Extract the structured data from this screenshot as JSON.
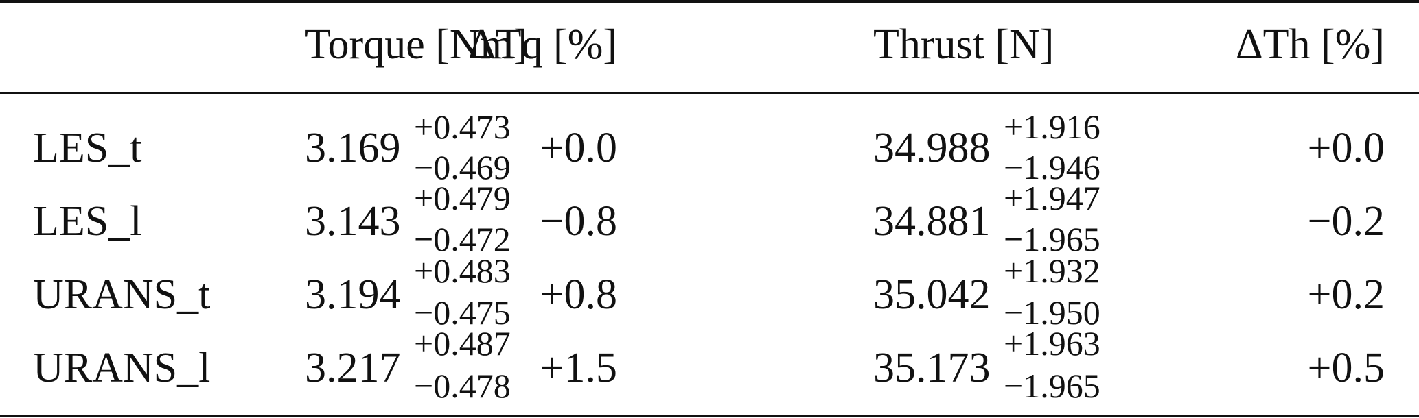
{
  "table": {
    "headers": {
      "label": "",
      "torque": "Torque [Nm]",
      "dtq": "ΔTq [%]",
      "thrust": "Thrust [N]",
      "dth": "ΔTh [%]"
    },
    "rows": [
      {
        "label": "LES_t",
        "torque": "3.169",
        "torque_plus": "+0.473",
        "torque_minus": "−0.469",
        "dtq": "+0.0",
        "thrust": "34.988",
        "thrust_plus": "+1.916",
        "thrust_minus": "−1.946",
        "dth": "+0.0"
      },
      {
        "label": "LES_l",
        "torque": "3.143",
        "torque_plus": "+0.479",
        "torque_minus": "−0.472",
        "dtq": "−0.8",
        "thrust": "34.881",
        "thrust_plus": "+1.947",
        "thrust_minus": "−1.965",
        "dth": "−0.2"
      },
      {
        "label": "URANS_t",
        "torque": "3.194",
        "torque_plus": "+0.483",
        "torque_minus": "−0.475",
        "dtq": "+0.8",
        "thrust": "35.042",
        "thrust_plus": "+1.932",
        "thrust_minus": "−1.950",
        "dth": "+0.2"
      },
      {
        "label": "URANS_l",
        "torque": "3.217",
        "torque_plus": "+0.487",
        "torque_minus": "−0.478",
        "dtq": "+1.5",
        "thrust": "35.173",
        "thrust_plus": "+1.963",
        "thrust_minus": "−1.965",
        "dth": "+0.5"
      }
    ]
  }
}
